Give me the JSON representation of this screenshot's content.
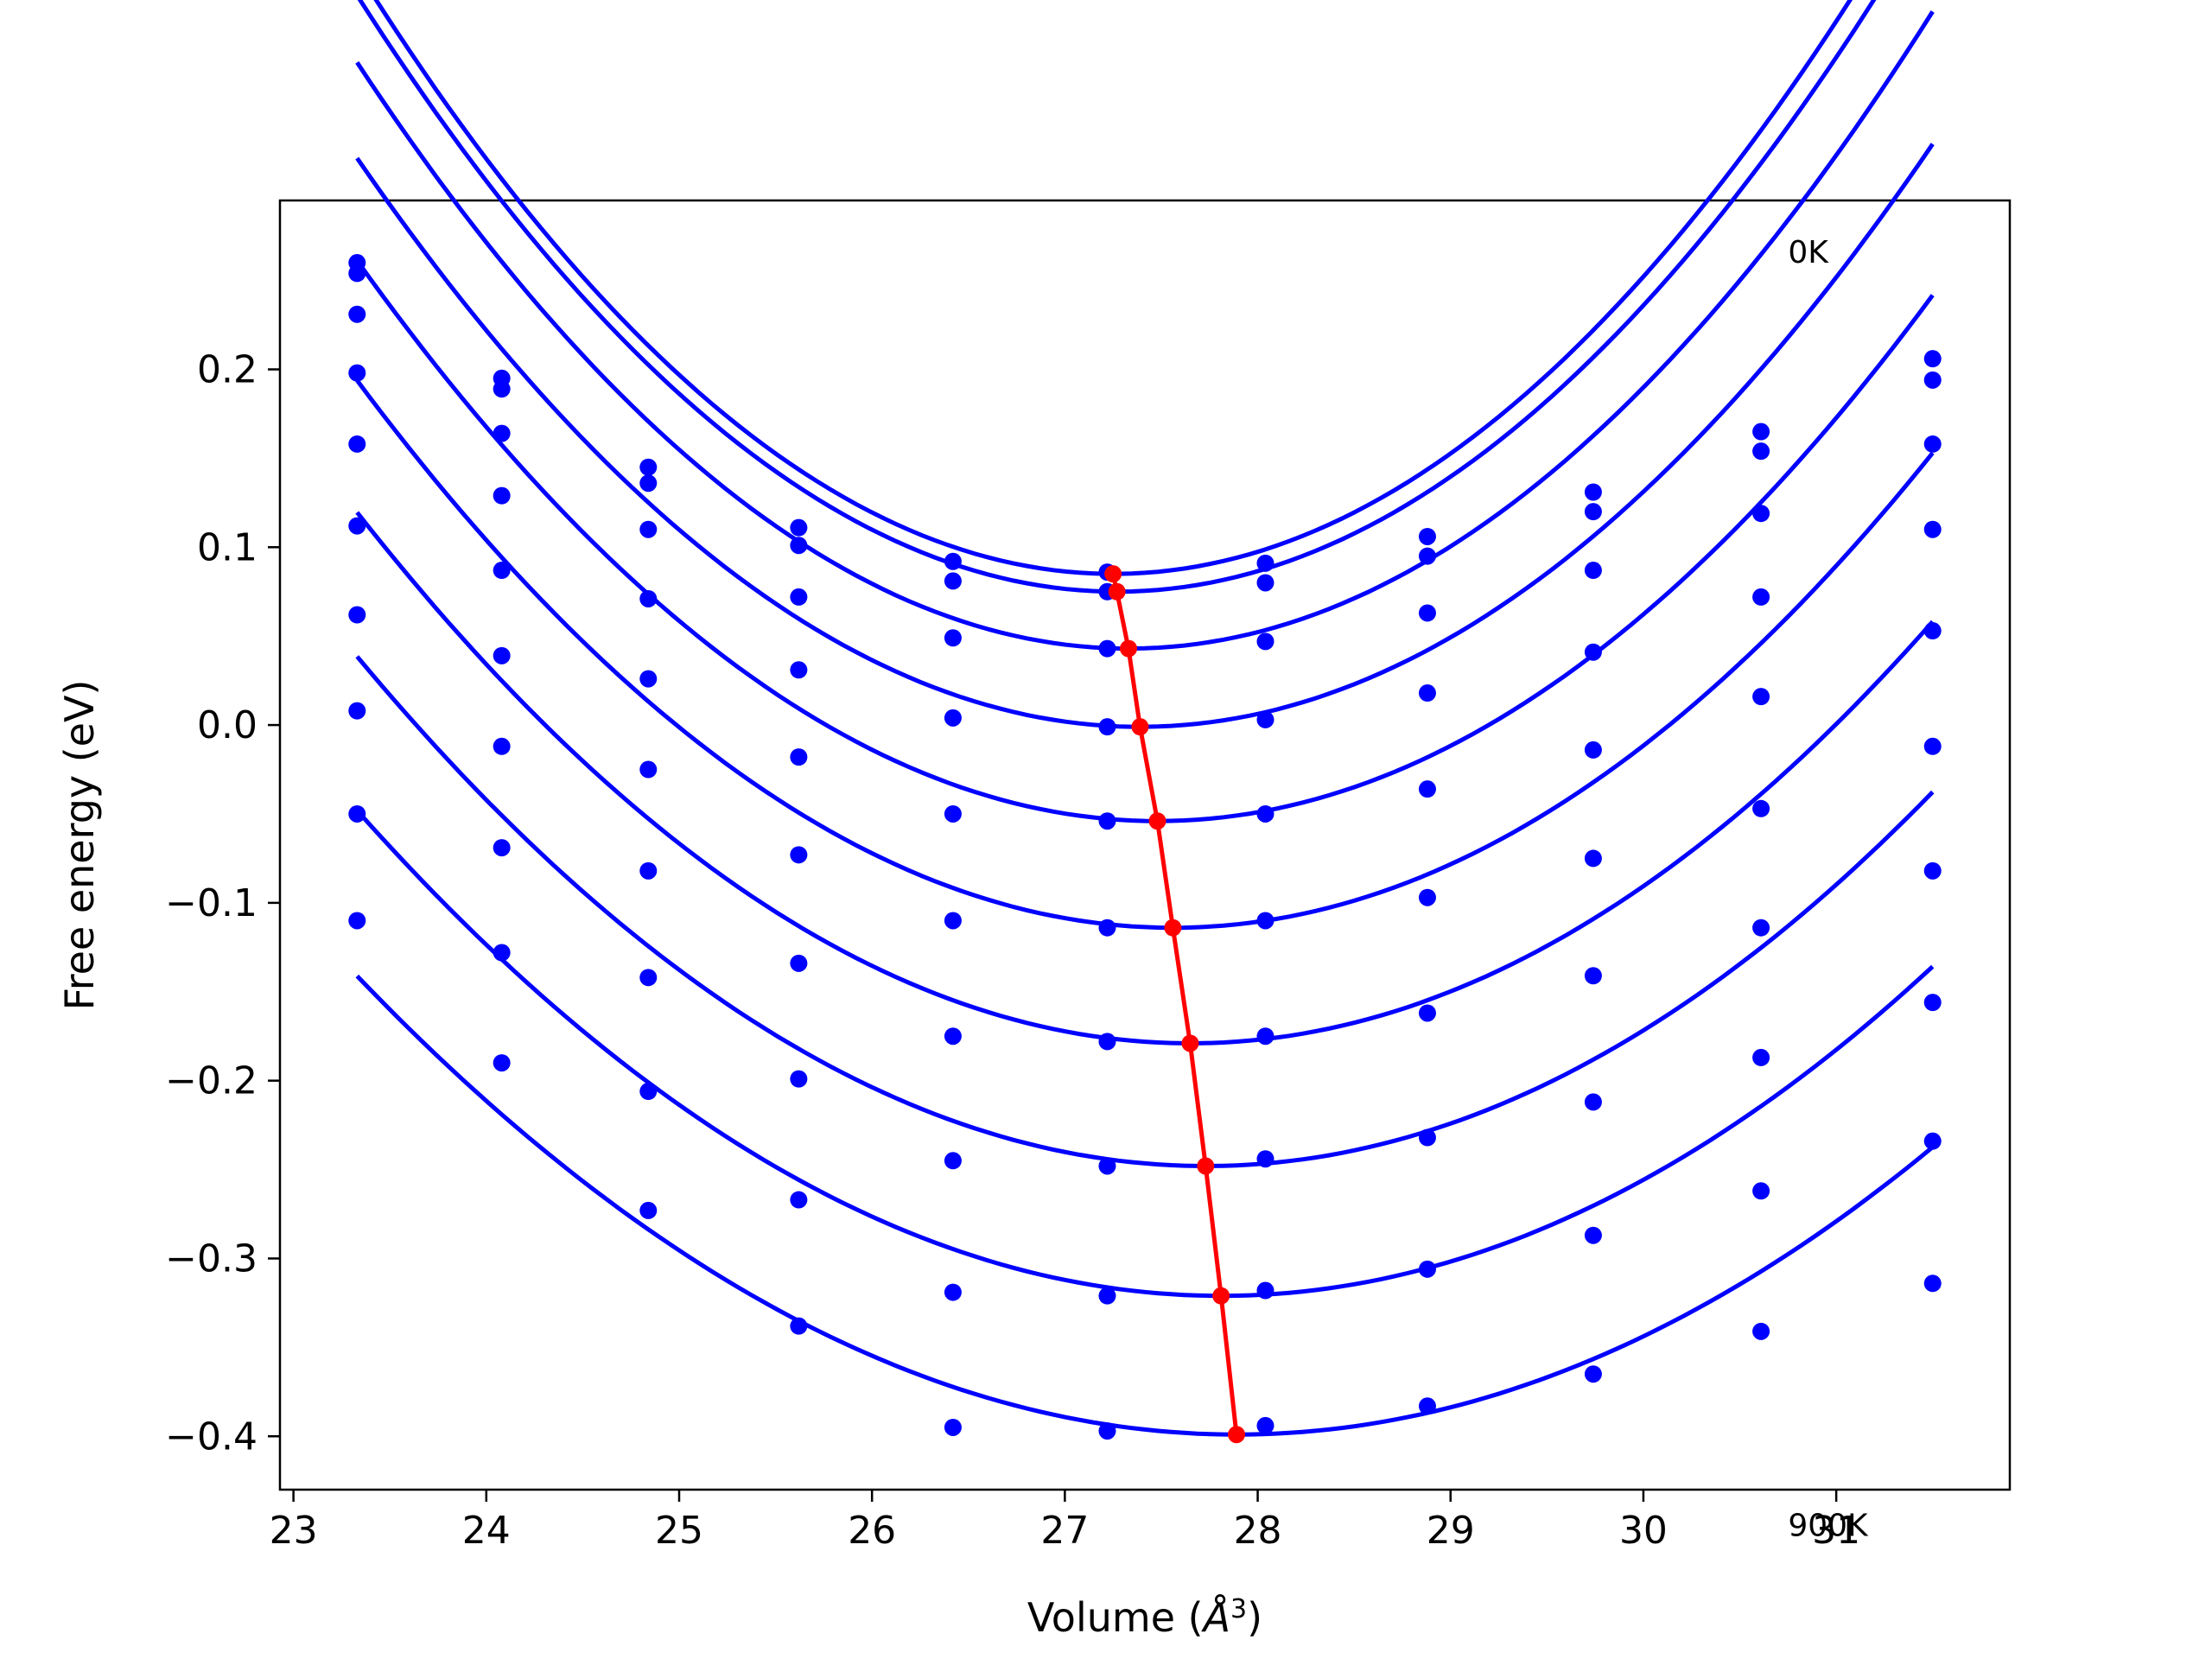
{
  "chart_data": {
    "type": "line",
    "xlabel": "Volume (Å³)",
    "xlabel_main": "Volume (",
    "xlabel_sym": "Å",
    "xlabel_sup": "3",
    "xlabel_close": ")",
    "ylabel": "Free energy (eV)",
    "xlim": [
      22.93,
      31.9
    ],
    "ylim": [
      -0.43,
      0.295
    ],
    "xticks": [
      23,
      24,
      25,
      26,
      27,
      28,
      29,
      30,
      31
    ],
    "xtick_labels": [
      "23",
      "24",
      "25",
      "26",
      "27",
      "28",
      "29",
      "30",
      "31"
    ],
    "yticks": [
      0.2,
      0.1,
      0.0,
      -0.1,
      -0.2,
      -0.3,
      -0.4
    ],
    "ytick_labels": [
      "0.2",
      "0.1",
      "0.0",
      "−0.1",
      "−0.2",
      "−0.3",
      "−0.4"
    ],
    "annotations": [
      {
        "text": "0K",
        "x": 30.75,
        "y": 0.26
      },
      {
        "text": "900K",
        "x": 30.75,
        "y": -0.456
      }
    ],
    "volumes": [
      23.33,
      24.08,
      24.84,
      25.62,
      26.42,
      27.22,
      28.04,
      28.88,
      29.74,
      30.61,
      31.5
    ],
    "series": [
      {
        "energies": [
          0.26,
          0.195,
          0.145,
          0.111,
          0.092,
          0.086,
          0.091,
          0.106,
          0.131,
          0.165,
          0.206
        ],
        "fit_a": 0.0221,
        "fit_vmin": 27.25,
        "fit_emin": 0.085
      },
      {
        "energies": [
          0.254,
          0.189,
          0.136,
          0.101,
          0.081,
          0.075,
          0.08,
          0.095,
          0.12,
          0.154,
          0.194
        ],
        "fit_a": 0.0216,
        "fit_vmin": 27.27,
        "fit_emin": 0.075
      },
      {
        "energies": [
          0.231,
          0.164,
          0.11,
          0.072,
          0.049,
          0.043,
          0.047,
          0.063,
          0.087,
          0.119,
          0.158
        ],
        "fit_a": 0.0206,
        "fit_vmin": 27.33,
        "fit_emin": 0.043
      },
      {
        "energies": [
          0.198,
          0.129,
          0.071,
          0.031,
          0.004,
          -0.001,
          0.003,
          0.018,
          0.041,
          0.072,
          0.11
        ],
        "fit_a": 0.0194,
        "fit_vmin": 27.39,
        "fit_emin": -0.001
      },
      {
        "energies": [
          0.158,
          0.087,
          0.026,
          -0.018,
          -0.05,
          -0.054,
          -0.05,
          -0.036,
          -0.014,
          0.016,
          0.053
        ],
        "fit_a": 0.0183,
        "fit_vmin": 27.48,
        "fit_emin": -0.054
      },
      {
        "energies": [
          0.112,
          0.039,
          -0.025,
          -0.073,
          -0.11,
          -0.114,
          -0.11,
          -0.097,
          -0.075,
          -0.047,
          -0.012
        ],
        "fit_a": 0.0172,
        "fit_vmin": 27.56,
        "fit_emin": -0.114
      },
      {
        "energies": [
          0.062,
          -0.012,
          -0.082,
          -0.134,
          -0.175,
          -0.178,
          -0.175,
          -0.162,
          -0.141,
          -0.114,
          -0.082
        ],
        "fit_a": 0.016,
        "fit_vmin": 27.65,
        "fit_emin": -0.179
      },
      {
        "energies": [
          0.008,
          -0.069,
          -0.142,
          -0.199,
          -0.245,
          -0.248,
          -0.244,
          -0.232,
          -0.212,
          -0.187,
          -0.156
        ],
        "fit_a": 0.0148,
        "fit_vmin": 27.73,
        "fit_emin": -0.248
      },
      {
        "energies": [
          -0.05,
          -0.128,
          -0.206,
          -0.267,
          -0.319,
          -0.321,
          -0.318,
          -0.306,
          -0.287,
          -0.262,
          -0.234
        ],
        "fit_a": 0.0136,
        "fit_vmin": 27.81,
        "fit_emin": -0.321
      },
      {
        "energies": [
          -0.11,
          -0.19,
          -0.273,
          -0.338,
          -0.395,
          -0.397,
          -0.394,
          -0.383,
          -0.365,
          -0.341,
          -0.314
        ],
        "fit_a": 0.0124,
        "fit_vmin": 27.89,
        "fit_emin": -0.399
      }
    ],
    "minima_line": {
      "x": [
        27.25,
        27.27,
        27.33,
        27.39,
        27.48,
        27.56,
        27.65,
        27.73,
        27.81,
        27.89
      ],
      "y": [
        0.085,
        0.075,
        0.043,
        -0.001,
        -0.054,
        -0.114,
        -0.179,
        -0.248,
        -0.321,
        -0.399
      ]
    },
    "colors": {
      "points": "#0000ff",
      "fits": "#0000ff",
      "minima": "#ff0000"
    }
  }
}
